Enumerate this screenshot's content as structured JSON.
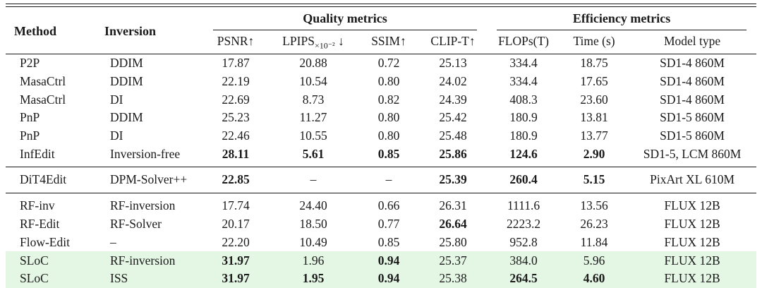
{
  "table": {
    "title_groups": {
      "quality": "Quality metrics",
      "efficiency": "Efficiency metrics"
    },
    "columns": {
      "method": "Method",
      "inversion": "Inversion",
      "psnr": "PSNR↑",
      "lpips_main": "LPIPS",
      "lpips_sub": "×10⁻²",
      "lpips_arrow": " ↓",
      "ssim": "SSIM↑",
      "clip_t": "CLIP-T↑",
      "flops": "FLOPs(T)",
      "time": "Time (s)",
      "model_type": "Model type"
    },
    "column_keys": [
      "method",
      "inversion",
      "psnr",
      "lpips",
      "ssim",
      "clip-t",
      "flops",
      "time",
      "model-type"
    ],
    "highlight_color": "#e4f6e4",
    "text_color": "#1a1a1a",
    "rule_color": "#161616",
    "rows": [
      {
        "hl": false,
        "rule_after": false,
        "tall": false,
        "cells": [
          {
            "t": "P2P",
            "b": false
          },
          {
            "t": "DDIM",
            "b": false
          },
          {
            "t": "17.87",
            "b": false
          },
          {
            "t": "20.88",
            "b": false
          },
          {
            "t": "0.72",
            "b": false
          },
          {
            "t": "25.13",
            "b": false
          },
          {
            "t": "334.4",
            "b": false
          },
          {
            "t": "18.75",
            "b": false
          },
          {
            "t": "SD1-4 860M",
            "b": false
          }
        ]
      },
      {
        "hl": false,
        "rule_after": false,
        "tall": false,
        "cells": [
          {
            "t": "MasaCtrl",
            "b": false
          },
          {
            "t": "DDIM",
            "b": false
          },
          {
            "t": "22.19",
            "b": false
          },
          {
            "t": "10.54",
            "b": false
          },
          {
            "t": "0.80",
            "b": false
          },
          {
            "t": "24.02",
            "b": false
          },
          {
            "t": "334.4",
            "b": false
          },
          {
            "t": "17.65",
            "b": false
          },
          {
            "t": "SD1-4 860M",
            "b": false
          }
        ]
      },
      {
        "hl": false,
        "rule_after": false,
        "tall": false,
        "cells": [
          {
            "t": "MasaCtrl",
            "b": false
          },
          {
            "t": "DI",
            "b": false
          },
          {
            "t": "22.69",
            "b": false
          },
          {
            "t": "8.73",
            "b": false
          },
          {
            "t": "0.82",
            "b": false
          },
          {
            "t": "24.39",
            "b": false
          },
          {
            "t": "408.3",
            "b": false
          },
          {
            "t": "23.60",
            "b": false
          },
          {
            "t": "SD1-4 860M",
            "b": false
          }
        ]
      },
      {
        "hl": false,
        "rule_after": false,
        "tall": false,
        "cells": [
          {
            "t": "PnP",
            "b": false
          },
          {
            "t": "DDIM",
            "b": false
          },
          {
            "t": "25.23",
            "b": false
          },
          {
            "t": "11.27",
            "b": false
          },
          {
            "t": "0.80",
            "b": false
          },
          {
            "t": "25.42",
            "b": false
          },
          {
            "t": "180.9",
            "b": false
          },
          {
            "t": "13.81",
            "b": false
          },
          {
            "t": "SD1-5 860M",
            "b": false
          }
        ]
      },
      {
        "hl": false,
        "rule_after": false,
        "tall": false,
        "cells": [
          {
            "t": "PnP",
            "b": false
          },
          {
            "t": "DI",
            "b": false
          },
          {
            "t": "22.46",
            "b": false
          },
          {
            "t": "10.55",
            "b": false
          },
          {
            "t": "0.80",
            "b": false
          },
          {
            "t": "25.48",
            "b": false
          },
          {
            "t": "180.9",
            "b": false
          },
          {
            "t": "13.77",
            "b": false
          },
          {
            "t": "SD1-5 860M",
            "b": false
          }
        ]
      },
      {
        "hl": false,
        "rule_after": true,
        "tall": false,
        "cells": [
          {
            "t": "InfEdit",
            "b": false
          },
          {
            "t": "Inversion-free",
            "b": false
          },
          {
            "t": "28.11",
            "b": true
          },
          {
            "t": "5.61",
            "b": true
          },
          {
            "t": "0.85",
            "b": true
          },
          {
            "t": "25.86",
            "b": true
          },
          {
            "t": "124.6",
            "b": true
          },
          {
            "t": "2.90",
            "b": true
          },
          {
            "t": "SD1-5, LCM 860M",
            "b": false
          }
        ]
      },
      {
        "hl": false,
        "rule_after": true,
        "tall": true,
        "cells": [
          {
            "t": "DiT4Edit",
            "b": false
          },
          {
            "t": "DPM-Solver++",
            "b": false
          },
          {
            "t": "22.85",
            "b": true
          },
          {
            "t": "–",
            "b": false
          },
          {
            "t": "–",
            "b": false
          },
          {
            "t": "25.39",
            "b": true
          },
          {
            "t": "260.4",
            "b": true
          },
          {
            "t": "5.15",
            "b": true
          },
          {
            "t": "PixArt XL 610M",
            "b": false
          }
        ]
      },
      {
        "hl": false,
        "rule_after": false,
        "tall": false,
        "cells": [
          {
            "t": "RF-inv",
            "b": false
          },
          {
            "t": "RF-inversion",
            "b": false
          },
          {
            "t": "17.74",
            "b": false
          },
          {
            "t": "24.40",
            "b": false
          },
          {
            "t": "0.66",
            "b": false
          },
          {
            "t": "26.31",
            "b": false
          },
          {
            "t": "1111.6",
            "b": false
          },
          {
            "t": "13.56",
            "b": false
          },
          {
            "t": "FLUX 12B",
            "b": false
          }
        ]
      },
      {
        "hl": false,
        "rule_after": false,
        "tall": false,
        "cells": [
          {
            "t": "RF-Edit",
            "b": false
          },
          {
            "t": "RF-Solver",
            "b": false
          },
          {
            "t": "20.17",
            "b": false
          },
          {
            "t": "18.50",
            "b": false
          },
          {
            "t": "0.77",
            "b": false
          },
          {
            "t": "26.64",
            "b": true
          },
          {
            "t": "2223.2",
            "b": false
          },
          {
            "t": "26.23",
            "b": false
          },
          {
            "t": "FLUX 12B",
            "b": false
          }
        ]
      },
      {
        "hl": false,
        "rule_after": false,
        "tall": false,
        "cells": [
          {
            "t": "Flow-Edit",
            "b": false
          },
          {
            "t": "–",
            "b": false
          },
          {
            "t": "22.20",
            "b": false
          },
          {
            "t": "10.49",
            "b": false
          },
          {
            "t": "0.85",
            "b": false
          },
          {
            "t": "25.80",
            "b": false
          },
          {
            "t": "952.8",
            "b": false
          },
          {
            "t": "11.84",
            "b": false
          },
          {
            "t": "FLUX 12B",
            "b": false
          }
        ]
      },
      {
        "hl": true,
        "rule_after": false,
        "tall": false,
        "cells": [
          {
            "t": "SLoC",
            "b": false
          },
          {
            "t": "RF-inversion",
            "b": false
          },
          {
            "t": "31.97",
            "b": true
          },
          {
            "t": "1.96",
            "b": false
          },
          {
            "t": "0.94",
            "b": true
          },
          {
            "t": "25.37",
            "b": false
          },
          {
            "t": "384.0",
            "b": false
          },
          {
            "t": "5.96",
            "b": false
          },
          {
            "t": "FLUX 12B",
            "b": false
          }
        ]
      },
      {
        "hl": true,
        "rule_after": false,
        "tall": false,
        "cells": [
          {
            "t": "SLoC",
            "b": false
          },
          {
            "t": "ISS",
            "b": false
          },
          {
            "t": "31.97",
            "b": true
          },
          {
            "t": "1.95",
            "b": true
          },
          {
            "t": "0.94",
            "b": true
          },
          {
            "t": "25.38",
            "b": false
          },
          {
            "t": "264.5",
            "b": true
          },
          {
            "t": "4.60",
            "b": true
          },
          {
            "t": "FLUX 12B",
            "b": false
          }
        ]
      }
    ]
  }
}
